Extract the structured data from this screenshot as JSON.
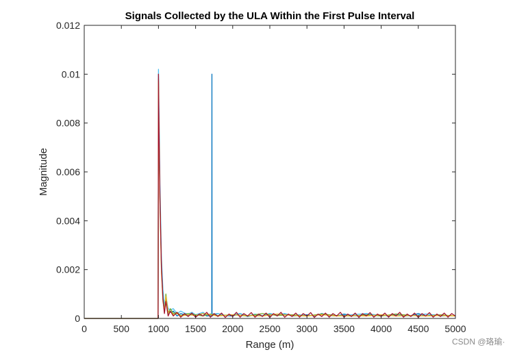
{
  "chart_data": {
    "type": "line",
    "title": "Signals Collected by the ULA Within the First Pulse Interval",
    "xlabel": "Range (m)",
    "ylabel": "Magnitude",
    "xlim": [
      0,
      5000
    ],
    "ylim": [
      0,
      0.012
    ],
    "xticks": [
      0,
      500,
      1000,
      1500,
      2000,
      2500,
      3000,
      3500,
      4000,
      4500,
      5000
    ],
    "xtick_labels": [
      "0",
      "500",
      "1000",
      "1500",
      "2000",
      "2500",
      "3000",
      "3500",
      "4000",
      "4500",
      "5000"
    ],
    "yticks": [
      0,
      0.002,
      0.004,
      0.006,
      0.008,
      0.01,
      0.012
    ],
    "ytick_labels": [
      "0",
      "0.002",
      "0.004",
      "0.006",
      "0.008",
      "0.01",
      "0.012"
    ],
    "grid": false,
    "legend": "none",
    "series": [
      {
        "color": "#0072BD",
        "x": [
          0,
          995,
          1000,
          1005,
          1020,
          1040,
          1060,
          1080,
          1100,
          1130,
          1160,
          1200,
          1250,
          1300,
          1350,
          1400,
          1450,
          1500,
          1550,
          1600,
          1650,
          1700,
          1718,
          1720,
          1722,
          1750,
          1800,
          1900,
          2000,
          2100,
          2200,
          2300,
          2400,
          2500,
          2600,
          2700,
          2800,
          2900,
          3000,
          3100,
          3200,
          3300,
          3400,
          3500,
          3600,
          3700,
          3800,
          3900,
          4000,
          4100,
          4200,
          4300,
          4400,
          4500,
          4600,
          4700,
          4800,
          4900,
          5000
        ],
        "y": [
          0,
          0,
          0.01,
          0.0085,
          0.005,
          0.0022,
          0.0009,
          0.0004,
          0.0008,
          0.0003,
          0.00025,
          0.0003,
          0.0001,
          0.0002,
          0.00015,
          0.0001,
          0.00018,
          0.0001,
          0.00015,
          0.0002,
          0.0001,
          0.00012,
          0.0001,
          0.01,
          0.0001,
          0.00015,
          0.0002,
          0.00012,
          0.0001,
          0.0002,
          8e-05,
          0.00015,
          0.0001,
          0.0002,
          0.00012,
          0.00018,
          0.0001,
          0.00012,
          0.00015,
          0.0001,
          0.0002,
          0.00012,
          0.0001,
          0.00018,
          0.00012,
          0.0001,
          0.0002,
          0.00012,
          0.00015,
          0.0001,
          0.00018,
          0.0001,
          0.00012,
          0.0002,
          0.0001,
          0.00015,
          0.0001,
          0.00012,
          0.0001
        ]
      },
      {
        "color": "#4DBEEE",
        "x": [
          0,
          995,
          1000,
          1005,
          1020,
          1040,
          1060,
          1080,
          1100,
          1130,
          1160,
          1200,
          1250,
          1300,
          1350,
          1400,
          1450,
          1500,
          1550,
          1600,
          1650,
          1700,
          1800,
          1900,
          2000,
          2100,
          2200,
          2300,
          2400,
          2500,
          2600,
          2700,
          2800,
          2900,
          3000,
          3200,
          3400,
          3600,
          3800,
          4000,
          4200,
          4400,
          4600,
          4800,
          5000
        ],
        "y": [
          0,
          0,
          0.0102,
          0.009,
          0.0055,
          0.0025,
          0.0012,
          0.0005,
          0.0009,
          0.0004,
          0.00035,
          0.0004,
          0.0002,
          0.0003,
          0.00022,
          0.00018,
          0.00025,
          0.00015,
          0.0002,
          0.00025,
          0.00015,
          0.00018,
          0.0002,
          0.00012,
          0.00015,
          0.0002,
          0.0001,
          0.00018,
          0.00012,
          0.0002,
          0.00015,
          0.0002,
          0.00012,
          0.00015,
          0.0001,
          0.00018,
          0.00012,
          0.00015,
          0.0002,
          0.00012,
          0.00015,
          0.0001,
          0.00018,
          0.00012,
          0.0001
        ]
      },
      {
        "color": "#77AC30",
        "x": [
          0,
          995,
          1000,
          1005,
          1020,
          1040,
          1060,
          1080,
          1100,
          1130,
          1160,
          1200,
          1250,
          1300,
          1400,
          1500,
          1600,
          1700,
          1800,
          2000,
          2200,
          2400,
          2600,
          2800,
          3000,
          3200,
          3400,
          3600,
          3800,
          4000,
          4200,
          4400,
          4600,
          4800,
          5000
        ],
        "y": [
          0,
          0,
          0.0098,
          0.0082,
          0.0048,
          0.002,
          0.0008,
          0.0003,
          0.001,
          0.0002,
          0.0004,
          0.0002,
          0.00025,
          0.00012,
          0.0002,
          0.00015,
          0.0001,
          0.00018,
          0.00012,
          0.00015,
          0.0001,
          0.0002,
          0.00012,
          0.00015,
          0.0001,
          0.00018,
          0.00012,
          0.0001,
          0.00015,
          0.0001,
          0.00018,
          0.00012,
          0.0001,
          0.00015,
          0.0001
        ]
      },
      {
        "color": "#EDB120",
        "x": [
          0,
          995,
          1000,
          1005,
          1020,
          1040,
          1060,
          1080,
          1100,
          1130,
          1160,
          1200,
          1250,
          1300,
          1400,
          1500,
          1600,
          1800,
          2000,
          2200,
          2400,
          2600,
          2800,
          3000,
          3200,
          3400,
          3600,
          3800,
          4000,
          4200,
          4400,
          4600,
          4800,
          5000
        ],
        "y": [
          0,
          0,
          0.0097,
          0.0081,
          0.0047,
          0.0019,
          0.0007,
          0.0003,
          0.0009,
          0.00025,
          0.0003,
          0.00015,
          0.0002,
          0.0001,
          0.00015,
          0.00012,
          0.0002,
          0.0001,
          0.00015,
          0.00012,
          0.0001,
          0.00018,
          0.00012,
          0.0001,
          0.00015,
          0.0001,
          0.00012,
          0.0001,
          0.00015,
          0.0001,
          0.00012,
          0.0001,
          0.00012,
          0.0001
        ]
      },
      {
        "color": "#A2142F",
        "x": [
          0,
          995,
          1000,
          1005,
          1020,
          1040,
          1060,
          1080,
          1100,
          1130,
          1160,
          1200,
          1250,
          1300,
          1350,
          1400,
          1450,
          1500,
          1550,
          1600,
          1650,
          1700,
          1750,
          1800,
          1850,
          1900,
          1950,
          2000,
          2050,
          2100,
          2150,
          2200,
          2250,
          2300,
          2350,
          2400,
          2450,
          2500,
          2550,
          2600,
          2650,
          2700,
          2750,
          2800,
          2850,
          2900,
          2950,
          3000,
          3050,
          3100,
          3150,
          3200,
          3250,
          3300,
          3350,
          3400,
          3450,
          3500,
          3550,
          3600,
          3650,
          3700,
          3750,
          3800,
          3850,
          3900,
          3950,
          4000,
          4050,
          4100,
          4150,
          4200,
          4250,
          4300,
          4350,
          4400,
          4450,
          4500,
          4550,
          4600,
          4650,
          4700,
          4750,
          4800,
          4850,
          4900,
          4950,
          5000
        ],
        "y": [
          0,
          0,
          0.01,
          0.0084,
          0.0049,
          0.0021,
          0.0008,
          0.0002,
          0.0007,
          0.0001,
          0.0003,
          0.0001,
          0.00025,
          5e-05,
          0.0002,
          8e-05,
          0.00022,
          5e-05,
          0.00018,
          0.0001,
          0.00025,
          5e-05,
          0.0002,
          8e-05,
          0.00022,
          4e-05,
          0.00018,
          8e-05,
          0.00025,
          5e-05,
          0.0002,
          0.0001,
          0.00024,
          5e-05,
          0.00018,
          8e-05,
          0.00022,
          4e-05,
          0.0002,
          0.0001,
          0.00025,
          5e-05,
          0.00018,
          8e-05,
          0.00022,
          5e-05,
          0.0002,
          0.0001,
          0.00024,
          4e-05,
          0.00018,
          8e-05,
          0.00022,
          5e-05,
          0.0002,
          0.0001,
          0.00025,
          5e-05,
          0.00018,
          8e-05,
          0.00022,
          4e-05,
          0.0002,
          0.0001,
          0.00024,
          5e-05,
          0.00018,
          8e-05,
          0.00022,
          5e-05,
          0.0002,
          0.0001,
          0.00025,
          5e-05,
          0.00018,
          8e-05,
          0.00022,
          4e-05,
          0.0002,
          0.0001,
          0.00024,
          5e-05,
          0.00018,
          8e-05,
          0.00022,
          5e-05,
          0.0002,
          0.0001
        ]
      }
    ]
  },
  "watermark": "CSDN @珞瑜·"
}
